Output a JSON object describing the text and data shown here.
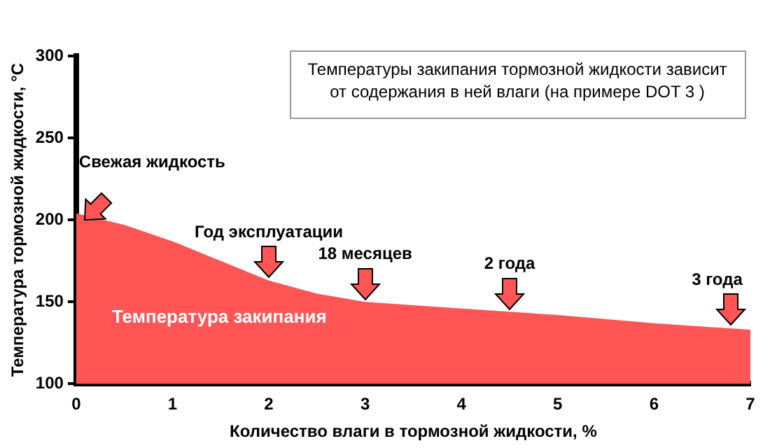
{
  "chart_data": {
    "type": "area",
    "xlabel": "Количество влаги в тормозной жидкости, %",
    "ylabel": "Температура тормозной жидкости, °C",
    "x": [
      0,
      0.5,
      1,
      1.5,
      2,
      2.5,
      3,
      4,
      5,
      6,
      7
    ],
    "series": [
      {
        "color": "#ff5555",
        "values": [
          204,
          197,
          187,
          175,
          163,
          155,
          150,
          146,
          142,
          137,
          133
        ]
      }
    ],
    "xlim": [
      0,
      7
    ],
    "xticks": [
      0,
      1,
      2,
      3,
      4,
      5,
      6,
      7
    ],
    "ylim": [
      100,
      300
    ],
    "yticks": [
      100,
      150,
      200,
      250,
      300
    ],
    "grid": false,
    "legend": false,
    "annotations": [
      "Температуры закипания тормозной жидкости зависит от содержания в ней влаги (на примере DOT 3 )",
      "Температура закипания",
      {
        "text": "Свежая жидкость",
        "x": 0,
        "y": 204
      },
      {
        "text": "Год эксплуатации",
        "x": 2,
        "y": 163
      },
      {
        "text": "18 месяцев",
        "x": 3,
        "y": 150
      },
      {
        "text": "2 года",
        "x": 4.5,
        "y": 144
      },
      {
        "text": "3 года",
        "x": 6.8,
        "y": 134
      }
    ]
  }
}
